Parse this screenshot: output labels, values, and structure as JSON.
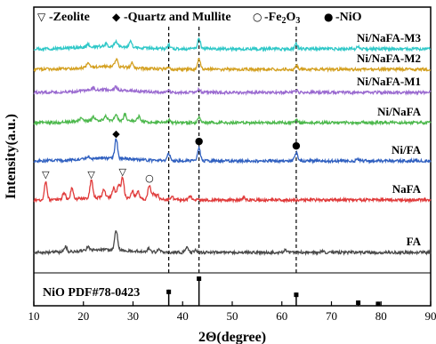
{
  "chart_data": {
    "type": "line",
    "xlabel": "2Θ(degree)",
    "ylabel": "Intensity(a.u.)",
    "xlim": [
      10,
      90
    ],
    "xticks": [
      10,
      20,
      30,
      40,
      50,
      60,
      70,
      80,
      90
    ],
    "grid": false,
    "legend_position": "top",
    "legend": [
      {
        "symbol": "▽",
        "label": "-Zeolite"
      },
      {
        "symbol": "◆",
        "label": "-Quartz and Mullite"
      },
      {
        "symbol": "○",
        "label": "-Fe",
        "sub": "2",
        "suffix": "O",
        "sub2": "3"
      },
      {
        "symbol": "●",
        "label": "-NiO"
      }
    ],
    "reference": {
      "label": "NiO PDF#78-0423",
      "peaks": [
        {
          "x": 37.2,
          "h": 0.55
        },
        {
          "x": 43.3,
          "h": 1.0
        },
        {
          "x": 62.9,
          "h": 0.45
        },
        {
          "x": 75.4,
          "h": 0.18
        },
        {
          "x": 79.4,
          "h": 0.14
        }
      ]
    },
    "dashed_lines": [
      37.2,
      43.3,
      62.9
    ],
    "series": [
      {
        "name": "FA",
        "color": "#4a4a4a",
        "baseline": 0,
        "peaks": [
          [
            16.4,
            6
          ],
          [
            20.9,
            4
          ],
          [
            26.6,
            22
          ],
          [
            33.2,
            4
          ],
          [
            35.3,
            3
          ],
          [
            40.8,
            6
          ],
          [
            42.6,
            3
          ],
          [
            60.7,
            3
          ],
          [
            68.2,
            2
          ]
        ]
      },
      {
        "name": "NaFA",
        "color": "#e03a3a",
        "baseline": 1,
        "peaks": [
          [
            12.4,
            20
          ],
          [
            16.1,
            8
          ],
          [
            17.7,
            12
          ],
          [
            21.6,
            20
          ],
          [
            24.1,
            9
          ],
          [
            26.1,
            11
          ],
          [
            27.1,
            14
          ],
          [
            27.9,
            23
          ],
          [
            29.9,
            8
          ],
          [
            31.0,
            8
          ],
          [
            33.3,
            16
          ],
          [
            34.2,
            7
          ],
          [
            35.0,
            5
          ],
          [
            37.8,
            4
          ],
          [
            41.5,
            4
          ],
          [
            52.3,
            3
          ]
        ]
      },
      {
        "name": "Ni/FA",
        "color": "#3060c0",
        "baseline": 2,
        "peaks": [
          [
            20.9,
            3
          ],
          [
            26.6,
            22
          ],
          [
            37.2,
            8
          ],
          [
            43.3,
            14
          ],
          [
            62.9,
            9
          ],
          [
            75.4,
            2
          ]
        ]
      },
      {
        "name": "Ni/NaFA",
        "color": "#4cb84c",
        "baseline": 3,
        "peaks": [
          [
            19.5,
            3
          ],
          [
            22.0,
            4
          ],
          [
            24.5,
            4
          ],
          [
            26.6,
            5
          ],
          [
            28.4,
            7
          ],
          [
            31.2,
            6
          ],
          [
            37.2,
            3
          ],
          [
            43.3,
            6
          ],
          [
            62.9,
            3
          ]
        ]
      },
      {
        "name": "Ni/NaFA-M1",
        "color": "#9a6ad0",
        "baseline": 4,
        "peaks": [
          [
            22.0,
            3
          ],
          [
            26.5,
            3
          ],
          [
            37.2,
            2
          ],
          [
            43.3,
            3
          ],
          [
            62.9,
            2
          ]
        ]
      },
      {
        "name": "Ni/NaFA-M2",
        "color": "#d4a020",
        "baseline": 5,
        "peaks": [
          [
            20.9,
            4
          ],
          [
            26.6,
            9
          ],
          [
            29.8,
            6
          ],
          [
            37.2,
            3
          ],
          [
            43.3,
            12
          ],
          [
            62.9,
            4
          ]
        ]
      },
      {
        "name": "Ni/NaFA-M3",
        "color": "#30c8c8",
        "baseline": 6,
        "peaks": [
          [
            20.9,
            3
          ],
          [
            24.5,
            3
          ],
          [
            26.6,
            6
          ],
          [
            29.5,
            6
          ],
          [
            37.2,
            4
          ],
          [
            43.3,
            12
          ],
          [
            62.9,
            6
          ],
          [
            75.4,
            2
          ]
        ]
      }
    ],
    "markers": [
      {
        "symbol": "▽",
        "x": 12.4,
        "series": "NaFA"
      },
      {
        "symbol": "▽",
        "x": 21.6,
        "series": "NaFA"
      },
      {
        "symbol": "▽",
        "x": 27.9,
        "series": "NaFA"
      },
      {
        "symbol": "○",
        "x": 33.3,
        "series": "NaFA"
      },
      {
        "symbol": "◆",
        "x": 26.6,
        "series": "Ni/FA"
      },
      {
        "symbol": "●",
        "x": 43.3,
        "series": "Ni/FA"
      },
      {
        "symbol": "●",
        "x": 62.9,
        "series": "Ni/FA"
      }
    ]
  }
}
